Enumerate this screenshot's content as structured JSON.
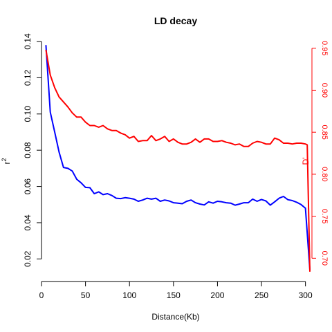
{
  "chart_data": {
    "type": "line",
    "title": "LD decay",
    "xlabel": "Distance(Kb)",
    "ylabel": "r",
    "ylabel_superscript": "2",
    "y2label": "D'",
    "xlim": [
      0,
      305
    ],
    "ylim": [
      0.0125,
      0.14
    ],
    "y2lim": [
      0.683,
      0.958
    ],
    "x_ticks": [
      0,
      50,
      100,
      150,
      200,
      250,
      300
    ],
    "y_ticks": [
      0.02,
      0.04,
      0.06,
      0.08,
      0.1,
      0.12,
      0.14
    ],
    "y_tick_labels": [
      "0.02",
      "0.04",
      "0.06",
      "0.08",
      "0.10",
      "0.12",
      "0.14"
    ],
    "y2_ticks": [
      0.7,
      0.75,
      0.8,
      0.85,
      0.9,
      0.95
    ],
    "y2_tick_labels": [
      "0.70",
      "0.75",
      "0.80",
      "0.85",
      "0.90",
      "0.95"
    ],
    "grid": false,
    "legend": "none",
    "colors": {
      "r2": "#0000ff",
      "dprime": "#ff0000",
      "axis_right": "#ff0000"
    },
    "series": [
      {
        "axis": "left",
        "x": [
          5,
          10,
          15,
          20,
          25,
          30,
          35,
          40,
          45,
          50,
          55,
          60,
          65,
          70,
          75,
          80,
          85,
          90,
          95,
          100,
          105,
          110,
          115,
          120,
          125,
          130,
          135,
          140,
          145,
          150,
          155,
          160,
          165,
          170,
          175,
          180,
          185,
          190,
          195,
          200,
          205,
          210,
          215,
          220,
          225,
          230,
          235,
          240,
          245,
          250,
          255,
          260,
          265,
          270,
          275,
          280,
          285,
          290,
          295,
          300,
          305
        ],
        "values": [
          0.138,
          0.101,
          0.09,
          0.079,
          0.0705,
          0.07,
          0.0685,
          0.064,
          0.062,
          0.0595,
          0.0593,
          0.056,
          0.057,
          0.0555,
          0.056,
          0.055,
          0.0535,
          0.0533,
          0.0538,
          0.0535,
          0.053,
          0.0518,
          0.0525,
          0.0535,
          0.053,
          0.0535,
          0.0518,
          0.0525,
          0.052,
          0.051,
          0.0508,
          0.0505,
          0.0518,
          0.0525,
          0.051,
          0.0503,
          0.0498,
          0.0515,
          0.0508,
          0.0518,
          0.0515,
          0.051,
          0.0508,
          0.0497,
          0.0503,
          0.051,
          0.051,
          0.053,
          0.0518,
          0.0528,
          0.052,
          0.0497,
          0.0515,
          0.0535,
          0.0545,
          0.0527,
          0.0522,
          0.0513,
          0.05,
          0.048,
          0.014
        ]
      },
      {
        "axis": "right",
        "x": [
          5,
          10,
          15,
          20,
          25,
          30,
          35,
          40,
          45,
          50,
          55,
          60,
          65,
          70,
          75,
          80,
          85,
          90,
          95,
          100,
          105,
          110,
          115,
          120,
          125,
          130,
          135,
          140,
          145,
          150,
          155,
          160,
          165,
          170,
          175,
          180,
          185,
          190,
          195,
          200,
          205,
          210,
          215,
          220,
          225,
          230,
          235,
          240,
          245,
          250,
          255,
          260,
          265,
          270,
          275,
          280,
          285,
          290,
          295,
          300,
          302,
          305
        ],
        "values": [
          0.948,
          0.918,
          0.903,
          0.892,
          0.886,
          0.88,
          0.873,
          0.868,
          0.868,
          0.862,
          0.858,
          0.858,
          0.856,
          0.858,
          0.854,
          0.852,
          0.852,
          0.849,
          0.847,
          0.843,
          0.845,
          0.839,
          0.84,
          0.84,
          0.846,
          0.84,
          0.842,
          0.845,
          0.839,
          0.842,
          0.838,
          0.836,
          0.836,
          0.838,
          0.842,
          0.838,
          0.842,
          0.842,
          0.839,
          0.839,
          0.84,
          0.838,
          0.837,
          0.835,
          0.836,
          0.833,
          0.833,
          0.837,
          0.839,
          0.838,
          0.836,
          0.836,
          0.843,
          0.841,
          0.837,
          0.837,
          0.836,
          0.837,
          0.837,
          0.836,
          0.835,
          0.684
        ]
      }
    ]
  }
}
